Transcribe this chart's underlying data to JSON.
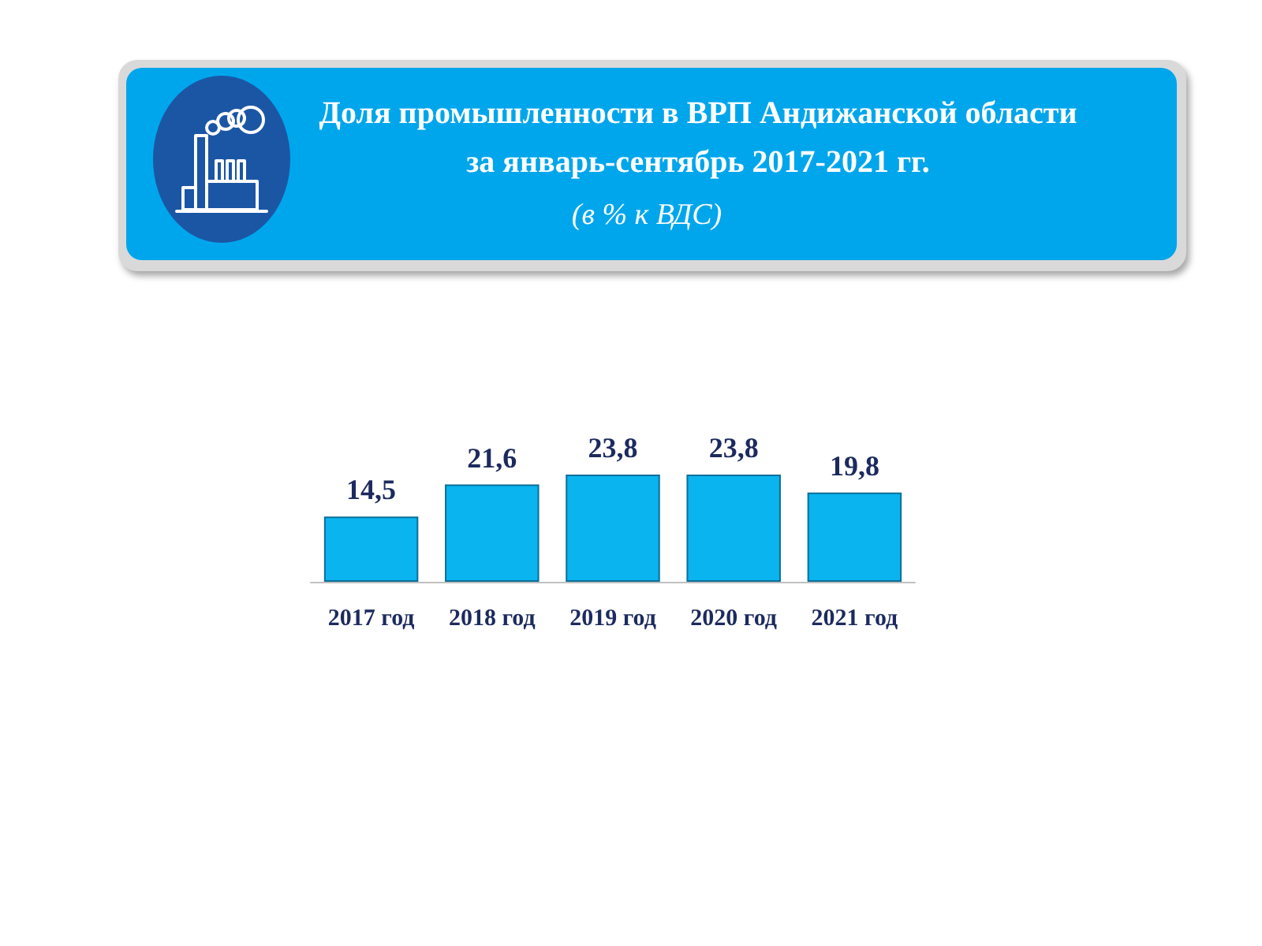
{
  "chart_data": {
    "type": "bar",
    "title": "Доля промышленности в ВРП Андижанской области\nза январь-сентябрь 2017-2021 гг.",
    "subtitle": "(в % к ВДС)",
    "categories": [
      "2017 год",
      "2018 год",
      "2019 год",
      "2020 год",
      "2021 год"
    ],
    "values": [
      14.5,
      21.6,
      23.8,
      23.8,
      19.8
    ],
    "value_labels": [
      "14,5",
      "21,6",
      "23,8",
      "23,8",
      "19,8"
    ],
    "color": "#0ab4ef"
  }
}
